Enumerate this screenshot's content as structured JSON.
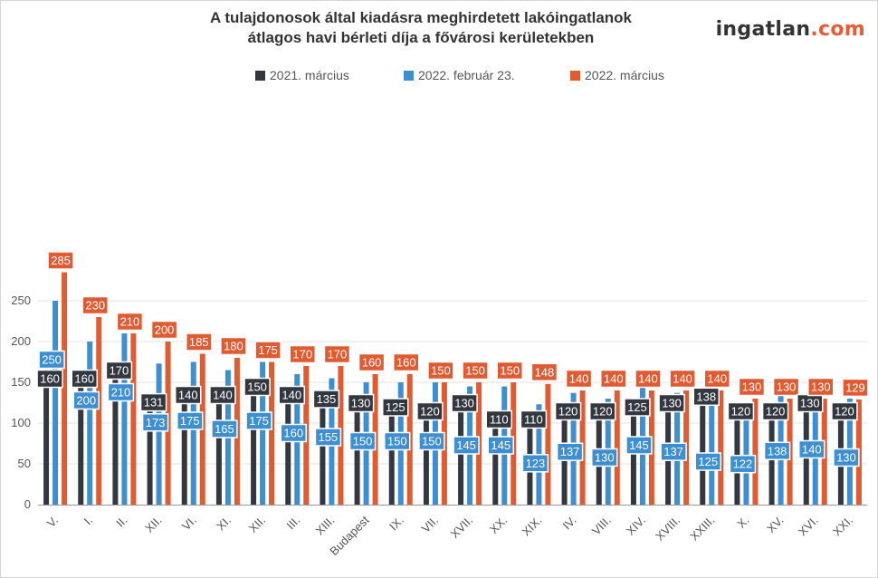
{
  "header": {
    "title_line1": "A tulajdonosok által kiadásra meghirdetett lakóingatlanok",
    "title_line2": "átlagos havi bérleti díja a fővárosi kerületekben",
    "logo_text": "ingatlan",
    "logo_suffix": ".com"
  },
  "colors": {
    "s2021": "#333740",
    "s2022feb": "#3d8fd1",
    "s2022mar": "#e05a32",
    "grid": "#e3e3e3",
    "axis": "#999999"
  },
  "chart_data": {
    "type": "bar",
    "title": "A tulajdonosok által kiadásra meghirdetett lakóingatlanok átlagos havi bérleti díja a fővárosi kerületekben",
    "xlabel": "",
    "ylabel": "",
    "ylim": [
      0,
      300
    ],
    "yticks": [
      0,
      50,
      100,
      150,
      200,
      250
    ],
    "grid": true,
    "legend_position": "top-center",
    "categories": [
      "V.",
      "I.",
      "II.",
      "XII.",
      "VI.",
      "XI.",
      "XII.",
      "III.",
      "XIII.",
      "Budapest",
      "IX.",
      "VII.",
      "XVII.",
      "XX.",
      "XIX.",
      "IV.",
      "VIII.",
      "XIV.",
      "XVIII.",
      "XXIII.",
      "X.",
      "XV.",
      "XVI.",
      "XXI."
    ],
    "series": [
      {
        "name": "2021. március",
        "color": "#333740",
        "values": [
          160,
          160,
          170,
          131,
          140,
          140,
          150,
          140,
          135,
          130,
          125,
          120,
          130,
          110,
          110,
          120,
          120,
          125,
          130,
          138,
          120,
          120,
          130,
          120
        ]
      },
      {
        "name": "2022. február 23.",
        "color": "#3d8fd1",
        "values": [
          250,
          200,
          210,
          173,
          175,
          165,
          175,
          160,
          155,
          150,
          150,
          150,
          145,
          145,
          123,
          137,
          130,
          145,
          137,
          125,
          122,
          138,
          140,
          130
        ]
      },
      {
        "name": "2022. március",
        "color": "#e05a32",
        "values": [
          285,
          230,
          210,
          200,
          185,
          180,
          175,
          170,
          170,
          160,
          160,
          150,
          150,
          150,
          148,
          140,
          140,
          140,
          140,
          140,
          130,
          130,
          130,
          129
        ]
      }
    ]
  }
}
